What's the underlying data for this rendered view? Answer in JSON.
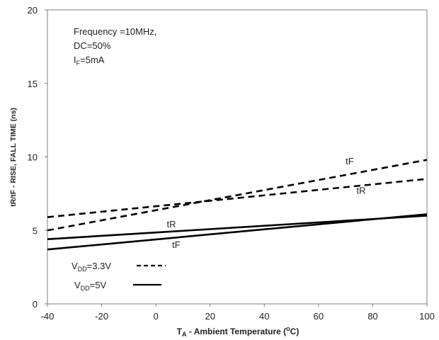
{
  "chart_data": {
    "type": "line",
    "xlabel": "T",
    "xlabel_sub": "A",
    "xlabel_rest": " - Ambient Temperature (",
    "xlabel_sup": "o",
    "xlabel_end": "C)",
    "ylabel": "tR/tF - RISE, FALL TIME (ns)",
    "xlim": [
      -40,
      100
    ],
    "ylim": [
      0,
      20
    ],
    "x_ticks": [
      -40,
      -20,
      0,
      20,
      40,
      60,
      80,
      100
    ],
    "y_ticks": [
      0,
      5,
      10,
      15,
      20
    ],
    "grid": false,
    "conditions": {
      "line1": "Frequency =10MHz,",
      "line2": "DC=50%",
      "line3_main": "I",
      "line3_sub": "F",
      "line3_rest": "=5mA"
    },
    "legend": {
      "placement": "bottom-left",
      "entries": [
        {
          "prefix": "V",
          "sub": "DD",
          "suffix": "=3.3V",
          "style": "dashed"
        },
        {
          "prefix": "V",
          "sub": "DD",
          "suffix": "=5V",
          "style": "solid"
        }
      ]
    },
    "series": [
      {
        "label": "tF",
        "vdd": "3.3V",
        "style": "dashed",
        "x": [
          -40,
          100
        ],
        "y": [
          5.0,
          9.8
        ],
        "label_at": [
          70,
          9.5
        ]
      },
      {
        "label": "tR",
        "vdd": "3.3V",
        "style": "dashed",
        "x": [
          -40,
          100
        ],
        "y": [
          5.9,
          8.5
        ],
        "label_at": [
          74,
          7.5
        ]
      },
      {
        "label": "tR",
        "vdd": "5V",
        "style": "solid",
        "x": [
          -40,
          100
        ],
        "y": [
          4.4,
          6.0
        ],
        "label_at": [
          4,
          5.2
        ]
      },
      {
        "label": "tF",
        "vdd": "5V",
        "style": "solid",
        "x": [
          -40,
          100
        ],
        "y": [
          3.7,
          6.1
        ],
        "label_at": [
          6,
          3.8
        ]
      }
    ]
  }
}
